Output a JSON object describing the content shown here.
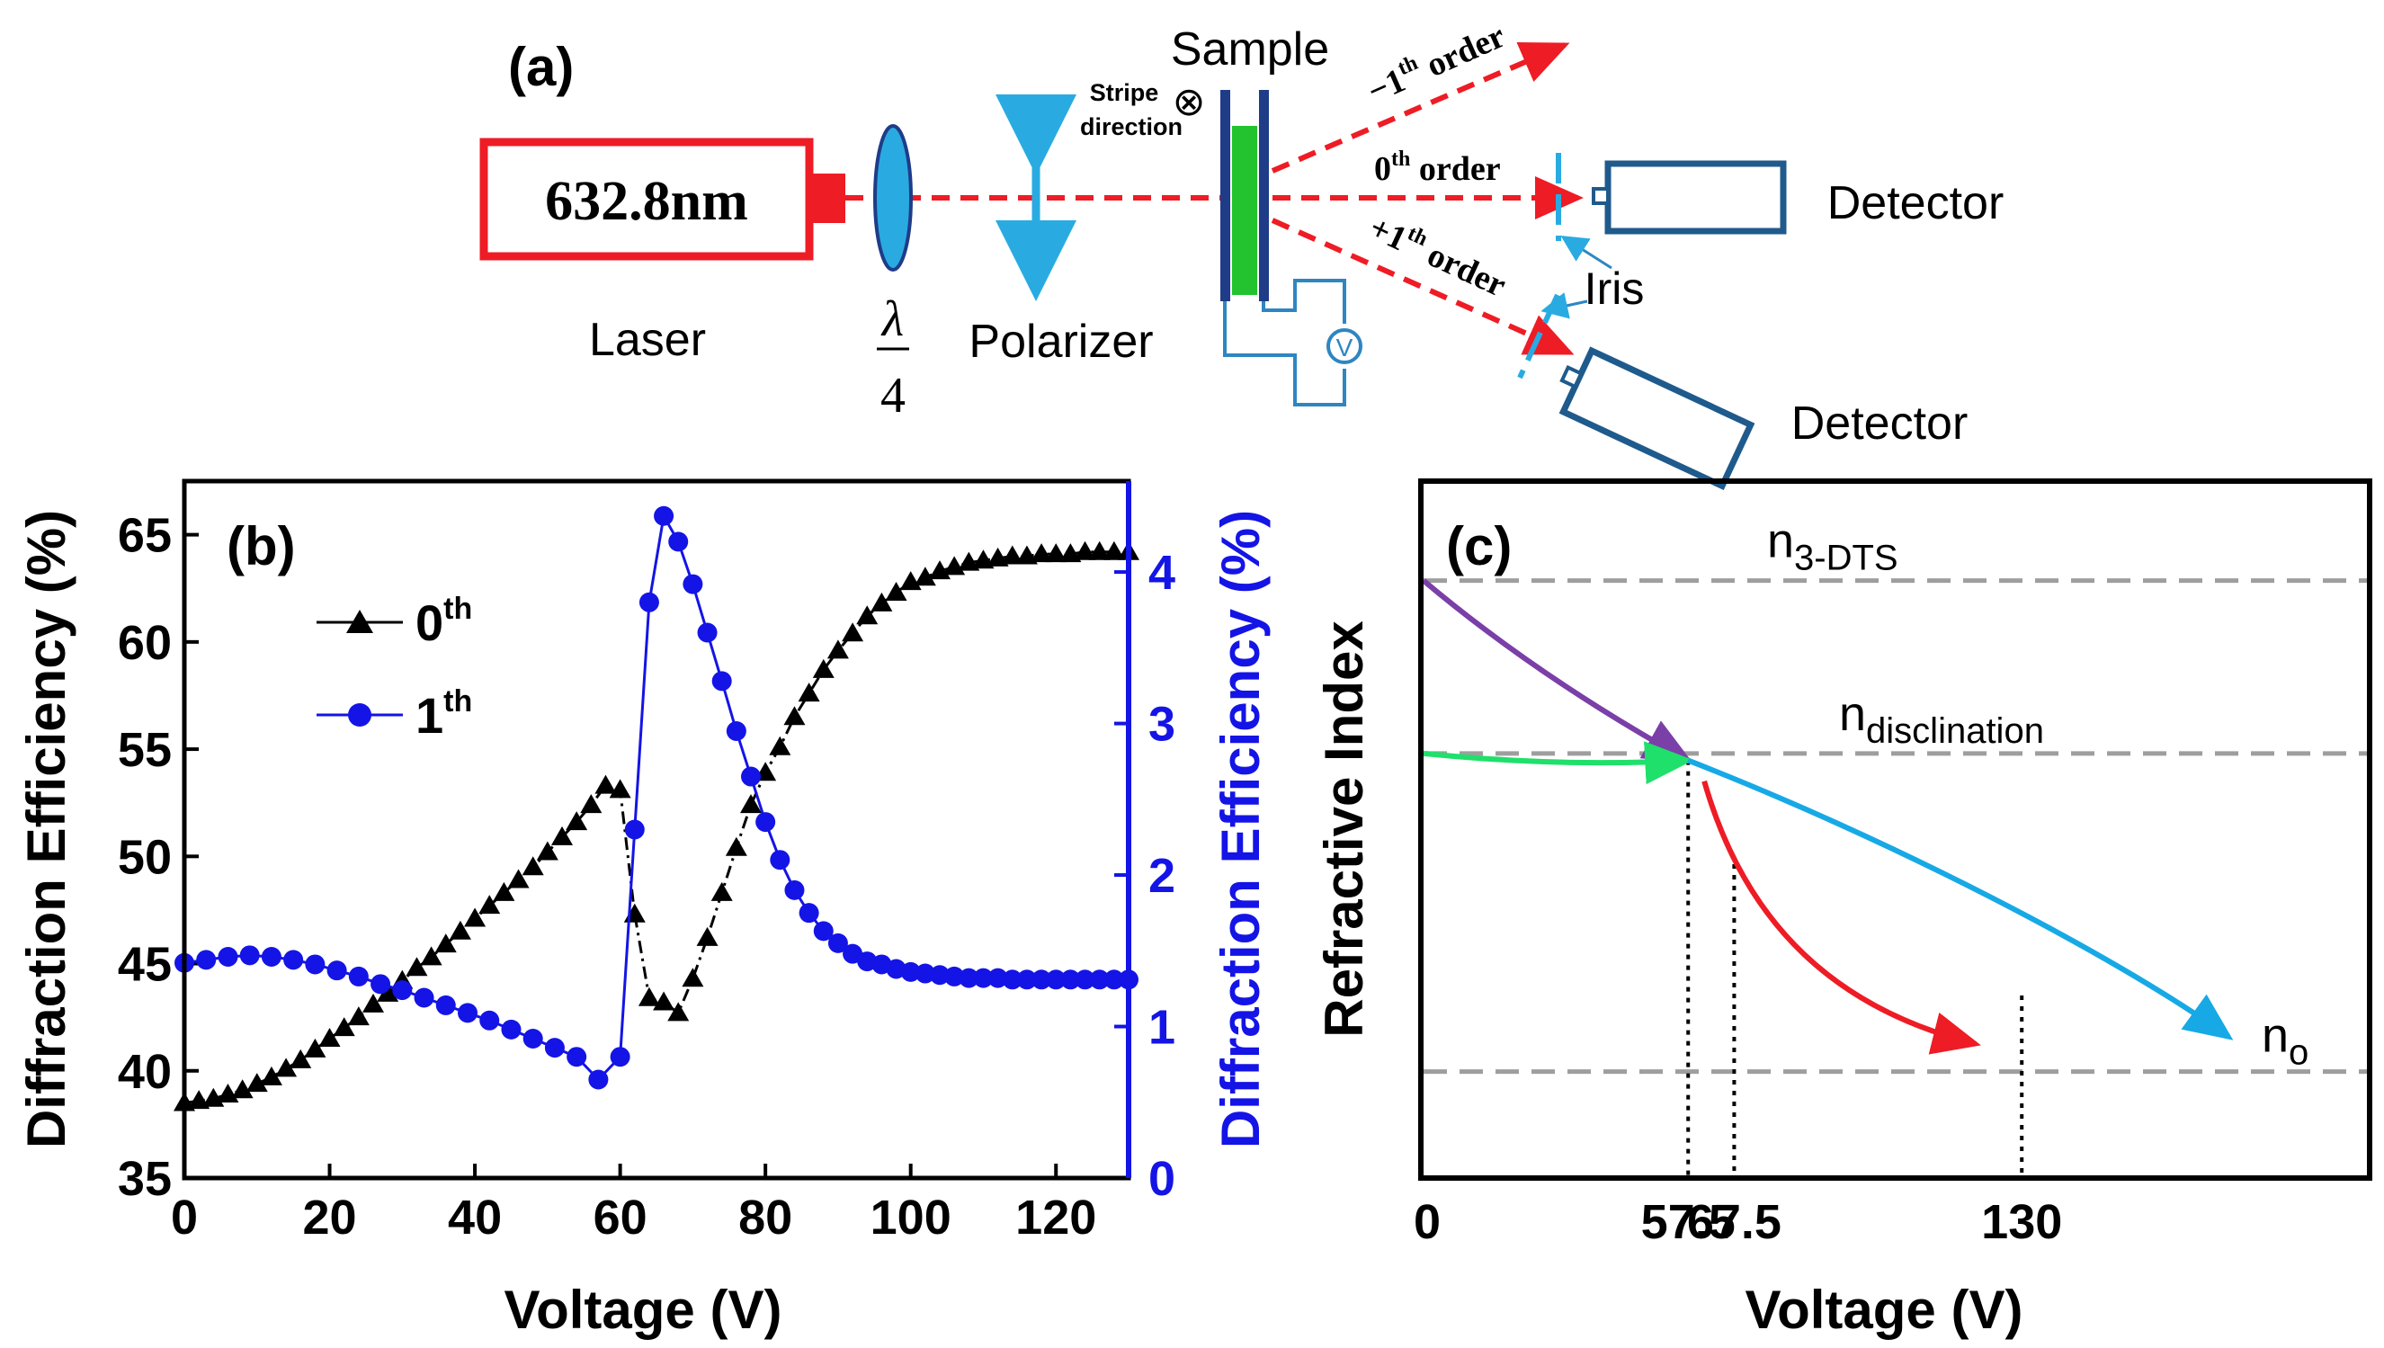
{
  "panel_a": {
    "label": "(a)",
    "laser_wavelength": "632.8nm",
    "laser_label": "Laser",
    "waveplate_num": "λ",
    "waveplate_den": "4",
    "polarizer_label": "Polarizer",
    "sample_label": "Sample",
    "stripe_line1": "Stripe",
    "stripe_line2": "direction",
    "stripe_symbol": "⊗",
    "voltage_symbol": "V",
    "order_minus": {
      "pre": "−1",
      "sup": "th",
      "post": " order"
    },
    "order_zero": {
      "pre": "0",
      "sup": "th",
      "post": " order"
    },
    "order_plus": {
      "pre": "+1",
      "sup": "th",
      "post": " order"
    },
    "detector_top": "Detector",
    "detector_bottom": "Detector",
    "iris_label": "Iris",
    "colors": {
      "laser": "#ee1c25",
      "beam": "#ee1c25",
      "optic": "#29abe2",
      "sample_glass": "#1f3c88",
      "sample_fill": "#22c32e",
      "detector": "#1f5a8c",
      "circuit": "#2e86c1"
    }
  },
  "chart_data": [
    {
      "id": "b",
      "type": "line",
      "panel_label": "(b)",
      "xlabel": "Voltage (V)",
      "ylabel_left": "Diffraction Efficiency (%)",
      "ylabel_right": "Diffraction Efficiency (%)",
      "xlim": [
        0,
        130
      ],
      "ylim_left": [
        35,
        67.5
      ],
      "ylim_right": [
        0,
        4.6
      ],
      "x_ticks": [
        0,
        20,
        40,
        60,
        80,
        100,
        120
      ],
      "y_ticks_left": [
        35,
        40,
        45,
        50,
        55,
        60,
        65
      ],
      "y_ticks_right": [
        0,
        1,
        2,
        3,
        4
      ],
      "legend_position": "upper-left",
      "series": [
        {
          "name": "0",
          "name_sup": "th",
          "axis": "left",
          "marker": "triangle",
          "color": "#000000",
          "x": [
            0,
            2,
            4,
            6,
            8,
            10,
            12,
            14,
            16,
            18,
            20,
            22,
            24,
            26,
            28,
            30,
            32,
            34,
            36,
            38,
            40,
            42,
            44,
            46,
            48,
            50,
            52,
            54,
            56,
            58,
            60,
            62,
            64,
            66,
            68,
            70,
            72,
            74,
            76,
            78,
            80,
            82,
            84,
            86,
            88,
            90,
            92,
            94,
            96,
            98,
            100,
            102,
            104,
            106,
            108,
            110,
            112,
            114,
            116,
            118,
            120,
            122,
            124,
            126,
            128,
            130
          ],
          "values": [
            38.5,
            38.6,
            38.7,
            38.9,
            39.1,
            39.4,
            39.7,
            40.1,
            40.5,
            41,
            41.5,
            42,
            42.5,
            43.1,
            43.6,
            44.2,
            44.8,
            45.3,
            45.9,
            46.5,
            47.1,
            47.7,
            48.3,
            48.9,
            49.5,
            50.2,
            50.9,
            51.6,
            52.4,
            53.3,
            53.1,
            47.3,
            43.4,
            43.2,
            42.7,
            44.3,
            46.2,
            48.3,
            50.4,
            52.4,
            53.9,
            55.1,
            56.5,
            57.6,
            58.7,
            59.6,
            60.4,
            61.2,
            61.8,
            62.3,
            62.8,
            63,
            63.3,
            63.5,
            63.7,
            63.8,
            63.9,
            64,
            64,
            64.1,
            64.1,
            64.1,
            64.2,
            64.2,
            64.2,
            64.2
          ]
        },
        {
          "name": "1",
          "name_sup": "th",
          "axis": "right",
          "marker": "circle",
          "color": "#1414e6",
          "x": [
            0,
            3,
            6,
            9,
            12,
            15,
            18,
            21,
            24,
            27,
            30,
            33,
            36,
            39,
            42,
            45,
            48,
            51,
            54,
            57,
            60,
            62,
            64,
            66,
            68,
            70,
            72,
            74,
            76,
            78,
            80,
            82,
            84,
            86,
            88,
            90,
            92,
            94,
            96,
            98,
            100,
            102,
            104,
            106,
            108,
            110,
            112,
            114,
            116,
            118,
            120,
            122,
            124,
            126,
            128,
            130
          ],
          "values": [
            1.42,
            1.44,
            1.46,
            1.47,
            1.46,
            1.44,
            1.41,
            1.37,
            1.33,
            1.28,
            1.24,
            1.19,
            1.14,
            1.09,
            1.04,
            0.98,
            0.92,
            0.86,
            0.8,
            0.65,
            0.8,
            2.3,
            3.8,
            4.37,
            4.2,
            3.92,
            3.6,
            3.28,
            2.95,
            2.65,
            2.35,
            2.1,
            1.9,
            1.75,
            1.63,
            1.55,
            1.48,
            1.43,
            1.41,
            1.38,
            1.36,
            1.35,
            1.34,
            1.33,
            1.32,
            1.32,
            1.32,
            1.31,
            1.31,
            1.31,
            1.31,
            1.31,
            1.31,
            1.31,
            1.31,
            1.31
          ]
        }
      ]
    },
    {
      "id": "c",
      "type": "line",
      "panel_label": "(c)",
      "xlabel": "Voltage (V)",
      "ylabel": "Refractive Index",
      "xlim": [
        0,
        205
      ],
      "ylim": [
        0,
        1
      ],
      "x_ticks": [
        0,
        57.5,
        67.5,
        130
      ],
      "x_tick_labels": [
        "0",
        "57.5",
        "67.5",
        "130"
      ],
      "reference_lines": [
        {
          "name": "n",
          "sub": "3-DTS",
          "value": 0.86
        },
        {
          "name": "n",
          "sub": "disclination",
          "value": 0.61
        },
        {
          "name": "n",
          "sub": "o",
          "value": 0.15
        }
      ],
      "series": [
        {
          "name": "purple",
          "color": "#7b3fa8",
          "x": [
            0,
            25,
            57.5
          ],
          "values": [
            0.86,
            0.72,
            0.6
          ]
        },
        {
          "name": "green",
          "color": "#1fe06a",
          "x": [
            0,
            30,
            57.5
          ],
          "values": [
            0.61,
            0.59,
            0.6
          ]
        },
        {
          "name": "cyan",
          "color": "#17a9e6",
          "x": [
            57.5,
            100,
            150,
            175
          ],
          "values": [
            0.6,
            0.49,
            0.32,
            0.2
          ]
        },
        {
          "name": "red",
          "color": "#ee1c25",
          "x": [
            61,
            70,
            90,
            120
          ],
          "values": [
            0.57,
            0.36,
            0.24,
            0.19
          ]
        }
      ],
      "vertical_markers": [
        {
          "x": 57.5,
          "y": 0.6
        },
        {
          "x": 67.5,
          "y": 0.45
        },
        {
          "x": 130,
          "y": 0.26
        }
      ]
    }
  ]
}
